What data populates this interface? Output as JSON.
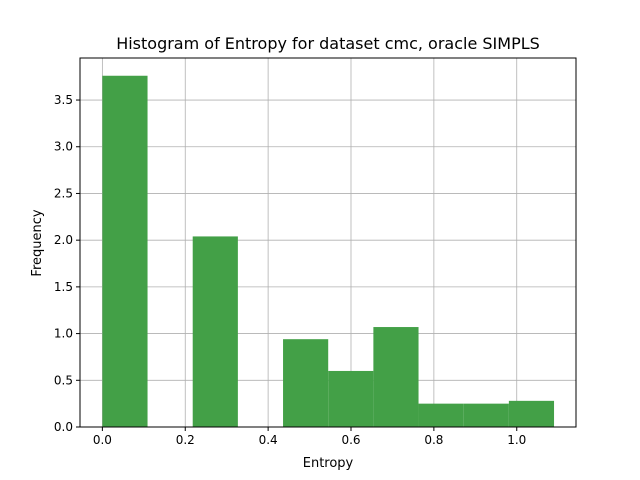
{
  "chart_data": {
    "type": "bar",
    "title": "Histogram of Entropy for dataset cmc, oracle SIMPLS",
    "xlabel": "Entropy",
    "ylabel": "Frequency",
    "xlim": [
      -0.054,
      1.143
    ],
    "ylim": [
      0,
      3.95
    ],
    "grid": true,
    "bar_color": "#43a047",
    "bins": [
      {
        "x0": 0.0,
        "x1": 0.109,
        "value": 3.76
      },
      {
        "x0": 0.109,
        "x1": 0.218,
        "value": 0.0
      },
      {
        "x0": 0.218,
        "x1": 0.327,
        "value": 2.04
      },
      {
        "x0": 0.327,
        "x1": 0.436,
        "value": 0.0
      },
      {
        "x0": 0.436,
        "x1": 0.545,
        "value": 0.94
      },
      {
        "x0": 0.545,
        "x1": 0.654,
        "value": 0.6
      },
      {
        "x0": 0.654,
        "x1": 0.763,
        "value": 1.07
      },
      {
        "x0": 0.763,
        "x1": 0.872,
        "value": 0.25
      },
      {
        "x0": 0.872,
        "x1": 0.981,
        "value": 0.25
      },
      {
        "x0": 0.981,
        "x1": 1.09,
        "value": 0.28
      }
    ],
    "xticks": [
      {
        "value": 0.0,
        "label": "0.0"
      },
      {
        "value": 0.2,
        "label": "0.2"
      },
      {
        "value": 0.4,
        "label": "0.4"
      },
      {
        "value": 0.6,
        "label": "0.6"
      },
      {
        "value": 0.8,
        "label": "0.8"
      },
      {
        "value": 1.0,
        "label": "1.0"
      }
    ],
    "yticks": [
      {
        "value": 0.0,
        "label": "0.0"
      },
      {
        "value": 0.5,
        "label": "0.5"
      },
      {
        "value": 1.0,
        "label": "1.0"
      },
      {
        "value": 1.5,
        "label": "1.5"
      },
      {
        "value": 2.0,
        "label": "2.0"
      },
      {
        "value": 2.5,
        "label": "2.5"
      },
      {
        "value": 3.0,
        "label": "3.0"
      },
      {
        "value": 3.5,
        "label": "3.5"
      }
    ]
  }
}
